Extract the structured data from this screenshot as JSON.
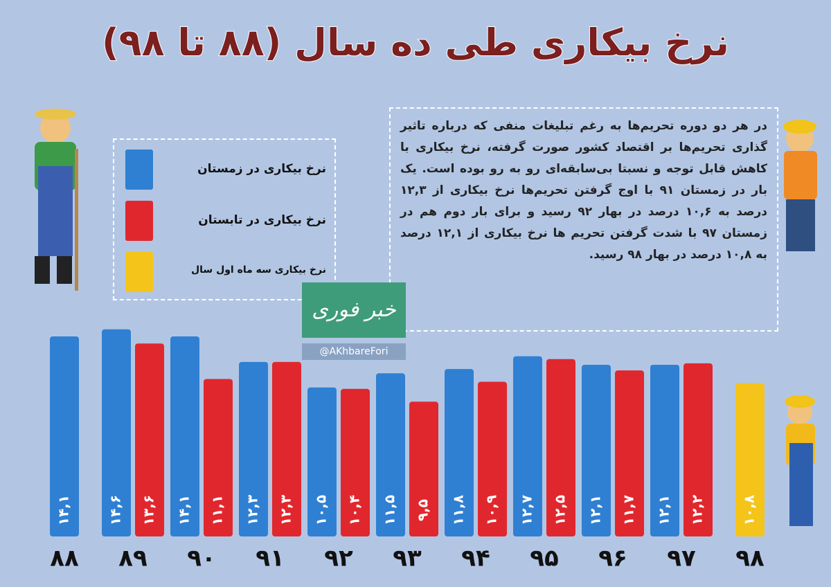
{
  "chart_data": {
    "type": "bar",
    "title": "نرخ بیکاری طی ده سال (۸۸ تا ۹۸)",
    "annotation": "در هر دو دوره تحریم‌ها به رغم تبلیغات منفی که درباره تاثیر گذاری تحریم‌ها بر اقتصاد کشور صورت گرفته، نرخ بیکاری با کاهش قابل توجه و نسبتا بی‌سابقه‌ای رو به رو بوده است. یک بار در زمستان ۹۱ با اوج گرفتن تحریم‌ها نرخ بیکاری از ۱۲,۳ درصد به ۱۰,۶ درصد در بهار ۹۲ رسید و برای بار دوم هم در زمستان ۹۷ با شدت گرفتن تحریم ها نرخ بیکاری از ۱۲,۱ درصد به ۱۰,۸ درصد در بهار ۹۸ رسید.",
    "watermark": "@AKhbareFori",
    "logo": "خبر فوری",
    "categories": [
      "۸۸",
      "۸۹",
      "۹۰",
      "۹۱",
      "۹۲",
      "۹۳",
      "۹۴",
      "۹۵",
      "۹۶",
      "۹۷",
      "۹۸"
    ],
    "series": [
      {
        "name": "نرخ بیکاری در زمستان",
        "color": "#2f80d2",
        "values": [
          14.1,
          14.6,
          14.1,
          12.3,
          10.5,
          11.5,
          11.8,
          12.7,
          12.1,
          12.1,
          null
        ],
        "value_labels": [
          "۱۴,۱",
          "۱۴,۶",
          "۱۴,۱",
          "۱۲,۳",
          "۱۰,۵",
          "۱۱,۵",
          "۱۱,۸",
          "۱۲,۷",
          "۱۲,۱",
          "۱۲,۱",
          null
        ]
      },
      {
        "name": "نرخ بیکاری در تابستان",
        "color": "#e1272e",
        "values": [
          null,
          13.6,
          11.1,
          12.3,
          10.4,
          9.5,
          10.9,
          12.5,
          11.7,
          12.2,
          null
        ],
        "value_labels": [
          null,
          "۱۳,۶",
          "۱۱,۱",
          "۱۲,۳",
          "۱۰,۴",
          "۹,۵",
          "۱۰,۹",
          "۱۲,۵",
          "۱۱,۷",
          "۱۲,۲",
          null
        ]
      },
      {
        "name": "نرخ بیکاری سه ماه اول سال",
        "color": "#f4c41a",
        "values": [
          null,
          null,
          null,
          null,
          null,
          null,
          null,
          null,
          null,
          null,
          10.8
        ],
        "value_labels": [
          null,
          null,
          null,
          null,
          null,
          null,
          null,
          null,
          null,
          null,
          "۱۰,۸"
        ]
      }
    ]
  }
}
